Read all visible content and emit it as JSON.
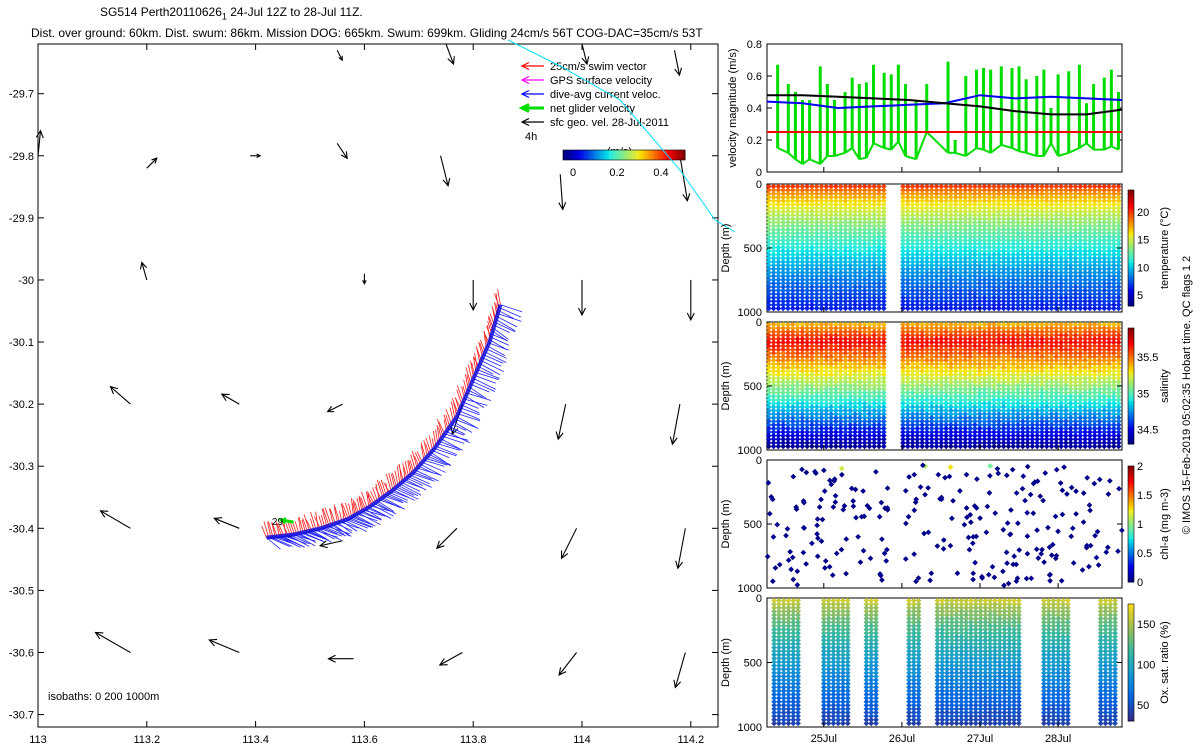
{
  "header": {
    "line1": "SG514 Perth20110626",
    "line1_sub": "1",
    "line1_rest": " 24-Jul 12Z to 28-Jul 11Z.",
    "line2": "Dist. over ground: 60km. Dist. swum: 86km. Mission DOG: 665km. Swum: 699km. Gliding 24cm/s 56T COG-DAC=35cm/s 53T"
  },
  "map": {
    "xlim": [
      113,
      114.25
    ],
    "ylim": [
      -30.72,
      -29.62
    ],
    "x_ticks": [
      "113",
      "113.2",
      "113.4",
      "113.6",
      "113.8",
      "114",
      "114.2"
    ],
    "y_ticks": [
      "-29.7",
      "-29.8",
      "-29.9",
      "-30",
      "-30.1",
      "-30.2",
      "-30.3",
      "-30.4",
      "-30.5",
      "-30.6",
      "-30.7"
    ],
    "isobaths_label": "isobaths: 0   200  1000m",
    "glider_day_label": "29",
    "legend": {
      "items": [
        {
          "label": "25cm/s swim vector",
          "color": "#ff0000"
        },
        {
          "label": "GPS surface velocity",
          "color": "#ff00ff"
        },
        {
          "label": "dive-avg current veloc.",
          "color": "#0000ff"
        },
        {
          "label": "net glider velocity",
          "color": "#00dd00"
        },
        {
          "label": "sfc geo. vel. 28-Jul-2011",
          "color": "#000000"
        }
      ],
      "scale_note": "4h",
      "colorbar_title": "(m/s)",
      "colorbar_ticks": [
        "0",
        "0.2",
        "0.4"
      ]
    },
    "current_vectors": [
      {
        "lon": 113.0,
        "lat": -29.8,
        "u": 0.005,
        "v": 0.05
      },
      {
        "lon": 113.2,
        "lat": -29.82,
        "u": 0.02,
        "v": 0.02
      },
      {
        "lon": 113.39,
        "lat": -29.8,
        "u": 0.02,
        "v": 0.0
      },
      {
        "lon": 113.55,
        "lat": -29.78,
        "u": 0.02,
        "v": -0.03
      },
      {
        "lon": 113.74,
        "lat": -29.8,
        "u": 0.015,
        "v": -0.06
      },
      {
        "lon": 113.96,
        "lat": -29.83,
        "u": 0.005,
        "v": -0.07
      },
      {
        "lon": 114.18,
        "lat": -29.8,
        "u": 0.015,
        "v": -0.09
      },
      {
        "lon": 113.2,
        "lat": -30.0,
        "u": -0.01,
        "v": 0.035
      },
      {
        "lon": 113.4,
        "lat": -30.0,
        "u": 0.0,
        "v": 0.0
      },
      {
        "lon": 113.6,
        "lat": -29.99,
        "u": 0.0,
        "v": -0.02
      },
      {
        "lon": 113.8,
        "lat": -30.0,
        "u": 0.0,
        "v": -0.06
      },
      {
        "lon": 114.0,
        "lat": -30.0,
        "u": 0.0,
        "v": -0.07
      },
      {
        "lon": 114.2,
        "lat": -30.0,
        "u": 0.0,
        "v": -0.08
      },
      {
        "lon": 113.17,
        "lat": -30.2,
        "u": -0.04,
        "v": 0.035
      },
      {
        "lon": 113.37,
        "lat": -30.2,
        "u": -0.035,
        "v": 0.02
      },
      {
        "lon": 113.56,
        "lat": -30.2,
        "u": -0.03,
        "v": -0.015
      },
      {
        "lon": 113.78,
        "lat": -30.2,
        "u": -0.02,
        "v": -0.06
      },
      {
        "lon": 113.97,
        "lat": -30.2,
        "u": -0.015,
        "v": -0.07
      },
      {
        "lon": 114.18,
        "lat": -30.2,
        "u": -0.015,
        "v": -0.08
      },
      {
        "lon": 113.17,
        "lat": -30.4,
        "u": -0.06,
        "v": 0.035
      },
      {
        "lon": 113.37,
        "lat": -30.4,
        "u": -0.05,
        "v": 0.02
      },
      {
        "lon": 113.56,
        "lat": -30.42,
        "u": -0.045,
        "v": -0.01
      },
      {
        "lon": 113.77,
        "lat": -30.4,
        "u": -0.04,
        "v": -0.04
      },
      {
        "lon": 113.99,
        "lat": -30.4,
        "u": -0.03,
        "v": -0.06
      },
      {
        "lon": 114.19,
        "lat": -30.4,
        "u": -0.015,
        "v": -0.08
      },
      {
        "lon": 113.17,
        "lat": -30.6,
        "u": -0.07,
        "v": 0.04
      },
      {
        "lon": 113.37,
        "lat": -30.6,
        "u": -0.06,
        "v": 0.025
      },
      {
        "lon": 113.58,
        "lat": -30.61,
        "u": -0.05,
        "v": 0.0
      },
      {
        "lon": 113.78,
        "lat": -30.6,
        "u": -0.045,
        "v": -0.025
      },
      {
        "lon": 113.99,
        "lat": -30.6,
        "u": -0.035,
        "v": -0.045
      },
      {
        "lon": 114.19,
        "lat": -30.6,
        "u": -0.02,
        "v": -0.07
      },
      {
        "lon": 113.55,
        "lat": -29.63,
        "u": 0.01,
        "v": -0.02
      },
      {
        "lon": 113.75,
        "lat": -29.62,
        "u": 0.015,
        "v": -0.04
      },
      {
        "lon": 114.0,
        "lat": -29.62,
        "u": 0.01,
        "v": -0.04
      },
      {
        "lon": 114.17,
        "lat": -29.63,
        "u": 0.01,
        "v": -0.05
      }
    ],
    "glider_track": [
      [
        113.42,
        -30.415
      ],
      [
        113.47,
        -30.41
      ],
      [
        113.52,
        -30.4
      ],
      [
        113.57,
        -30.385
      ],
      [
        113.61,
        -30.365
      ],
      [
        113.65,
        -30.34
      ],
      [
        113.69,
        -30.31
      ],
      [
        113.73,
        -30.27
      ],
      [
        113.77,
        -30.22
      ],
      [
        113.8,
        -30.16
      ],
      [
        113.83,
        -30.1
      ],
      [
        113.85,
        -30.04
      ]
    ]
  },
  "chart_data": [
    {
      "type": "line",
      "panel": "velocity magnitude",
      "ylabel": "velocity magnitude (m/s)",
      "ylim": [
        0,
        0.8
      ],
      "y_ticks": [
        "0",
        "0.2",
        "0.4",
        "0.6",
        "0.8"
      ],
      "series": [
        {
          "color": "#00dd00",
          "style": "bars",
          "x": [
            0.03,
            0.06,
            0.08,
            0.1,
            0.12,
            0.15,
            0.17,
            0.19,
            0.22,
            0.24,
            0.26,
            0.28,
            0.3,
            0.33,
            0.35,
            0.37,
            0.39,
            0.42,
            0.45,
            0.51,
            0.53,
            0.56,
            0.59,
            0.61,
            0.63,
            0.66,
            0.69,
            0.71,
            0.73,
            0.76,
            0.78,
            0.8,
            0.82,
            0.85,
            0.88,
            0.9,
            0.92,
            0.95,
            0.97,
            0.99
          ],
          "values": [
            0.67,
            0.55,
            0.5,
            0.45,
            0.45,
            0.66,
            0.55,
            0.45,
            0.5,
            0.59,
            0.55,
            0.56,
            0.67,
            0.62,
            0.61,
            0.67,
            0.55,
            0.45,
            0.55,
            0.69,
            0.2,
            0.6,
            0.64,
            0.65,
            0.64,
            0.66,
            0.65,
            0.66,
            0.58,
            0.6,
            0.64,
            0.4,
            0.61,
            0.63,
            0.67,
            0.43,
            0.55,
            0.59,
            0.64,
            0.5
          ],
          "mins": [
            0.15,
            0.12,
            0.08,
            0.05,
            0.08,
            0.05,
            0.1,
            0.1,
            0.12,
            0.15,
            0.08,
            0.09,
            0.18,
            0.15,
            0.14,
            0.19,
            0.1,
            0.08,
            0.25,
            0.12,
            0.12,
            0.1,
            0.15,
            0.14,
            0.12,
            0.17,
            0.15,
            0.13,
            0.12,
            0.1,
            0.1,
            0.18,
            0.1,
            0.12,
            0.15,
            0.18,
            0.14,
            0.14,
            0.16,
            0.14
          ]
        },
        {
          "color": "#0000ff",
          "style": "line",
          "x": [
            0,
            0.1,
            0.2,
            0.3,
            0.4,
            0.5,
            0.6,
            0.7,
            0.8,
            0.9,
            1.0
          ],
          "values": [
            0.44,
            0.43,
            0.4,
            0.41,
            0.42,
            0.43,
            0.48,
            0.46,
            0.47,
            0.46,
            0.45
          ]
        },
        {
          "color": "#000000",
          "style": "line",
          "x": [
            0,
            0.1,
            0.2,
            0.3,
            0.4,
            0.5,
            0.6,
            0.7,
            0.8,
            0.9,
            1.0
          ],
          "values": [
            0.48,
            0.48,
            0.47,
            0.46,
            0.45,
            0.43,
            0.41,
            0.38,
            0.36,
            0.36,
            0.39
          ]
        },
        {
          "color": "#ff0000",
          "style": "line",
          "x": [
            0,
            1
          ],
          "values": [
            0.25,
            0.25
          ]
        }
      ]
    },
    {
      "type": "scatter",
      "panel": "temperature",
      "ylabel": "Depth (m)",
      "ylim": [
        1000,
        0
      ],
      "y_ticks": [
        "0",
        "500",
        "1000"
      ],
      "colorbar_label": "temperature (°C)",
      "colorbar_ticks": [
        "5",
        "10",
        "15",
        "20"
      ],
      "colorbar_range": [
        3,
        24
      ],
      "colormap": "jet"
    },
    {
      "type": "scatter",
      "panel": "salinity",
      "ylabel": "Depth (m)",
      "ylim": [
        1000,
        0
      ],
      "y_ticks": [
        "0",
        "500",
        "1000"
      ],
      "colorbar_label": "salinity",
      "colorbar_ticks": [
        "34.5",
        "35",
        "35.5"
      ],
      "colorbar_range": [
        34.3,
        35.9
      ],
      "colormap": "jet"
    },
    {
      "type": "scatter",
      "panel": "chl-a",
      "ylabel": "Depth (m)",
      "ylim": [
        1000,
        0
      ],
      "y_ticks": [
        "0",
        "500",
        "1000"
      ],
      "colorbar_label": "chl-a (mg m-3)",
      "colorbar_ticks": [
        "0",
        "0.5",
        "1",
        "1.5",
        "2"
      ],
      "colorbar_range": [
        0,
        2
      ],
      "colormap": "jet"
    },
    {
      "type": "scatter",
      "panel": "oxygen",
      "ylabel": "Depth (m)",
      "ylim": [
        1000,
        0
      ],
      "y_ticks": [
        "0",
        "500",
        "1000"
      ],
      "colorbar_label": "Ox. sat. ratio (%)",
      "colorbar_ticks": [
        "50",
        "100",
        "150"
      ],
      "colorbar_range": [
        30,
        175
      ],
      "colormap": "parula"
    }
  ],
  "time_axis": {
    "ticks": [
      "25Jul",
      "26Jul",
      "27Jul",
      "28Jul"
    ]
  },
  "side_note": "© IMOS 15-Feb-2019 05:02:35 Hobart time. QC flags 1  2"
}
